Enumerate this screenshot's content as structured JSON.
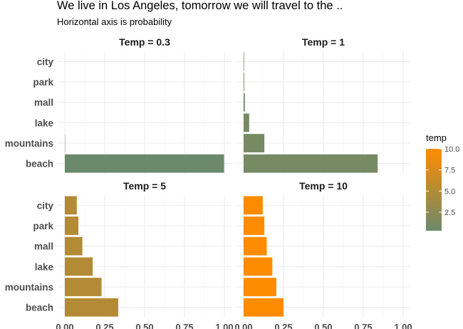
{
  "chart_data": {
    "type": "bar",
    "orientation": "horizontal",
    "title": "We live in Los Angeles, tomorrow we will travel to the ..",
    "subtitle": "Horizontal axis is probability",
    "categories": [
      "city",
      "park",
      "mall",
      "lake",
      "mountains",
      "beach"
    ],
    "xlim": [
      0,
      1
    ],
    "x_ticks": [
      "0.00",
      "0.25",
      "0.50",
      "0.75",
      "1.00"
    ],
    "grid": true,
    "facets": [
      {
        "label": "Temp = 0.3",
        "temp": 0.3,
        "values": [
          0.0,
          0.0,
          0.0,
          0.0,
          0.002,
          0.998
        ]
      },
      {
        "label": "Temp = 1",
        "temp": 1,
        "values": [
          0.003,
          0.004,
          0.008,
          0.035,
          0.13,
          0.84
        ]
      },
      {
        "label": "Temp = 5",
        "temp": 5,
        "values": [
          0.075,
          0.085,
          0.11,
          0.175,
          0.23,
          0.335
        ]
      },
      {
        "label": "Temp = 10",
        "temp": 10,
        "values": [
          0.12,
          0.13,
          0.145,
          0.18,
          0.205,
          0.25
        ]
      }
    ],
    "legend": {
      "title": "temp",
      "placement": "right",
      "ticks": [
        "2.5",
        "5.0",
        "7.5",
        "10.0"
      ],
      "tick_values": [
        2.5,
        5.0,
        7.5,
        10.0
      ],
      "range": [
        0.3,
        10
      ],
      "color_low": "#6b8a6b",
      "color_high": "#ff8c00"
    }
  }
}
